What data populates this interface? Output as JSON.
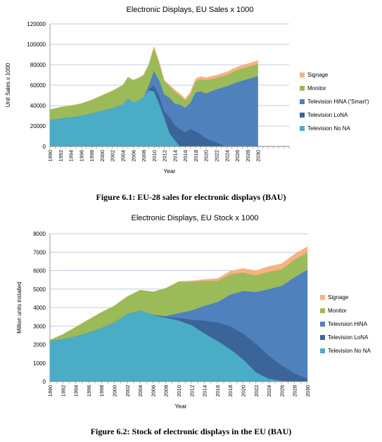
{
  "figures": [
    {
      "caption": "Figure 6.1: EU-28 sales for electronic displays (BAU)",
      "chart_data": {
        "type": "area",
        "stacked": true,
        "title": "Electronic Displays, EU Sales x 1000",
        "xlabel": "Year",
        "ylabel": "Unit Sales x 1000",
        "xlim": [
          1990,
          2036
        ],
        "ylim": [
          0,
          120000
        ],
        "yticks": [
          "0",
          "20000",
          "40000",
          "60000",
          "80000",
          "100000",
          "120000"
        ],
        "xticks": [
          "1990",
          "1992",
          "1994",
          "1996",
          "1998",
          "2000",
          "2002",
          "2004",
          "2006",
          "2008",
          "2010",
          "2012",
          "2014",
          "2016",
          "2018",
          "2020",
          "2022",
          "2024",
          "2026",
          "2028",
          "2030"
        ],
        "grid": true,
        "legend_position": "right",
        "series": [
          {
            "name": "Television No NA",
            "color": "#4bacc6",
            "points": [
              [
                1990,
                26000
              ],
              [
                1992,
                27500
              ],
              [
                1994,
                28500
              ],
              [
                1996,
                30000
              ],
              [
                1998,
                32500
              ],
              [
                2000,
                35000
              ],
              [
                2002,
                37500
              ],
              [
                2004,
                41000
              ],
              [
                2005,
                47000
              ],
              [
                2006,
                43000
              ],
              [
                2007,
                45000
              ],
              [
                2008,
                48000
              ],
              [
                2009,
                55000
              ],
              [
                2010,
                54000
              ],
              [
                2011,
                42000
              ],
              [
                2012,
                28000
              ],
              [
                2013,
                13000
              ],
              [
                2014,
                6000
              ],
              [
                2015,
                0
              ],
              [
                2030,
                0
              ]
            ]
          },
          {
            "name": "Television LoNA",
            "color": "#3b6498",
            "points": [
              [
                1990,
                0
              ],
              [
                2004,
                0
              ],
              [
                2006,
                0
              ],
              [
                2008,
                0
              ],
              [
                2009,
                1000
              ],
              [
                2010,
                6000
              ],
              [
                2011,
                8000
              ],
              [
                2012,
                6000
              ],
              [
                2013,
                16000
              ],
              [
                2014,
                15000
              ],
              [
                2015,
                17000
              ],
              [
                2016,
                14000
              ],
              [
                2017,
                17000
              ],
              [
                2018,
                15000
              ],
              [
                2019,
                12000
              ],
              [
                2020,
                8000
              ],
              [
                2022,
                4000
              ],
              [
                2024,
                0
              ],
              [
                2030,
                0
              ]
            ]
          },
          {
            "name": "Television HiNA ('Smart')",
            "color": "#4f81bd",
            "points": [
              [
                1990,
                0
              ],
              [
                2008,
                0
              ],
              [
                2009,
                4000
              ],
              [
                2010,
                14000
              ],
              [
                2011,
                15000
              ],
              [
                2012,
                17000
              ],
              [
                2013,
                19000
              ],
              [
                2014,
                21000
              ],
              [
                2015,
                24000
              ],
              [
                2016,
                24000
              ],
              [
                2017,
                26000
              ],
              [
                2018,
                38000
              ],
              [
                2019,
                42000
              ],
              [
                2020,
                44000
              ],
              [
                2022,
                52000
              ],
              [
                2024,
                59000
              ],
              [
                2026,
                63000
              ],
              [
                2028,
                66000
              ],
              [
                2030,
                69000
              ]
            ]
          },
          {
            "name": "Monitor",
            "color": "#9bbb59",
            "points": [
              [
                1990,
                10000
              ],
              [
                1992,
                11000
              ],
              [
                1994,
                11500
              ],
              [
                1996,
                12000
              ],
              [
                1998,
                13000
              ],
              [
                2000,
                15000
              ],
              [
                2002,
                17000
              ],
              [
                2004,
                19000
              ],
              [
                2005,
                21000
              ],
              [
                2006,
                22000
              ],
              [
                2007,
                22000
              ],
              [
                2008,
                22000
              ],
              [
                2009,
                20000
              ],
              [
                2010,
                23000
              ],
              [
                2011,
                17000
              ],
              [
                2012,
                13000
              ],
              [
                2013,
                11000
              ],
              [
                2014,
                12000
              ],
              [
                2015,
                9000
              ],
              [
                2016,
                7000
              ],
              [
                2017,
                8000
              ],
              [
                2018,
                11000
              ],
              [
                2019,
                12000
              ],
              [
                2020,
                13000
              ],
              [
                2022,
                11000
              ],
              [
                2024,
                11000
              ],
              [
                2026,
                12000
              ],
              [
                2028,
                12000
              ],
              [
                2030,
                12000
              ]
            ]
          },
          {
            "name": "Signage",
            "color": "#f9b183",
            "points": [
              [
                1990,
                0
              ],
              [
                2008,
                0
              ],
              [
                2009,
                500
              ],
              [
                2010,
                1000
              ],
              [
                2012,
                1200
              ],
              [
                2014,
                1500
              ],
              [
                2016,
                1800
              ],
              [
                2018,
                2500
              ],
              [
                2020,
                2500
              ],
              [
                2022,
                2800
              ],
              [
                2024,
                3000
              ],
              [
                2026,
                3000
              ],
              [
                2028,
                3000
              ],
              [
                2030,
                3200
              ]
            ]
          }
        ]
      }
    },
    {
      "caption": "Figure 6.2: Stock of electronic displays in the EU (BAU)",
      "chart_data": {
        "type": "area",
        "stacked": true,
        "title": "Electronic Displays, EU Stock x 1000",
        "xlabel": "Year",
        "ylabel": "Million units installed",
        "xlim": [
          1990,
          2030
        ],
        "ylim": [
          0,
          8000
        ],
        "yticks": [
          "0",
          "1000",
          "2000",
          "3000",
          "4000",
          "5000",
          "6000",
          "7000",
          "8000"
        ],
        "xticks": [
          "1990",
          "1992",
          "1994",
          "1996",
          "1998",
          "2000",
          "2002",
          "2004",
          "2006",
          "2008",
          "2010",
          "2012",
          "2014",
          "2016",
          "2018",
          "2020",
          "2022",
          "2024",
          "2026",
          "2028",
          "2030"
        ],
        "grid": true,
        "legend_position": "right",
        "series": [
          {
            "name": "Television No NA",
            "color": "#4bacc6",
            "points": [
              [
                1990,
                2200
              ],
              [
                1992,
                2300
              ],
              [
                1994,
                2450
              ],
              [
                1996,
                2650
              ],
              [
                1998,
                2900
              ],
              [
                2000,
                3200
              ],
              [
                2002,
                3650
              ],
              [
                2004,
                3850
              ],
              [
                2006,
                3600
              ],
              [
                2008,
                3450
              ],
              [
                2010,
                3300
              ],
              [
                2012,
                3050
              ],
              [
                2014,
                2600
              ],
              [
                2016,
                2200
              ],
              [
                2018,
                1750
              ],
              [
                2020,
                1200
              ],
              [
                2022,
                500
              ],
              [
                2024,
                150
              ],
              [
                2026,
                30
              ],
              [
                2028,
                0
              ],
              [
                2030,
                0
              ]
            ]
          },
          {
            "name": "Television LoNA",
            "color": "#3b6498",
            "points": [
              [
                1990,
                0
              ],
              [
                2004,
                0
              ],
              [
                2006,
                10
              ],
              [
                2008,
                50
              ],
              [
                2010,
                150
              ],
              [
                2012,
                300
              ],
              [
                2014,
                700
              ],
              [
                2016,
                1000
              ],
              [
                2018,
                1250
              ],
              [
                2020,
                1400
              ],
              [
                2022,
                1550
              ],
              [
                2024,
                1250
              ],
              [
                2026,
                850
              ],
              [
                2028,
                450
              ],
              [
                2030,
                150
              ]
            ]
          },
          {
            "name": "Television HiNA",
            "color": "#4f81bd",
            "points": [
              [
                1990,
                0
              ],
              [
                2006,
                0
              ],
              [
                2008,
                50
              ],
              [
                2010,
                250
              ],
              [
                2012,
                500
              ],
              [
                2014,
                800
              ],
              [
                2016,
                1100
              ],
              [
                2018,
                1700
              ],
              [
                2020,
                2300
              ],
              [
                2022,
                2800
              ],
              [
                2024,
                3600
              ],
              [
                2026,
                4300
              ],
              [
                2028,
                5200
              ],
              [
                2030,
                5900
              ]
            ]
          },
          {
            "name": "Monitor",
            "color": "#9bbb59",
            "points": [
              [
                1990,
                50
              ],
              [
                1992,
                250
              ],
              [
                1994,
                500
              ],
              [
                1996,
                700
              ],
              [
                1998,
                850
              ],
              [
                2000,
                900
              ],
              [
                2002,
                950
              ],
              [
                2004,
                1100
              ],
              [
                2006,
                1250
              ],
              [
                2008,
                1500
              ],
              [
                2010,
                1700
              ],
              [
                2012,
                1550
              ],
              [
                2014,
                1350
              ],
              [
                2016,
                1150
              ],
              [
                2018,
                1100
              ],
              [
                2020,
                1000
              ],
              [
                2022,
                900
              ],
              [
                2024,
                950
              ],
              [
                2026,
                900
              ],
              [
                2028,
                950
              ],
              [
                2030,
                950
              ]
            ]
          },
          {
            "name": "Signage",
            "color": "#f9b183",
            "points": [
              [
                1990,
                0
              ],
              [
                2008,
                0
              ],
              [
                2010,
                20
              ],
              [
                2012,
                50
              ],
              [
                2014,
                80
              ],
              [
                2016,
                120
              ],
              [
                2018,
                170
              ],
              [
                2020,
                220
              ],
              [
                2022,
                250
              ],
              [
                2024,
                280
              ],
              [
                2026,
                300
              ],
              [
                2028,
                300
              ],
              [
                2030,
                300
              ]
            ]
          }
        ]
      }
    }
  ]
}
